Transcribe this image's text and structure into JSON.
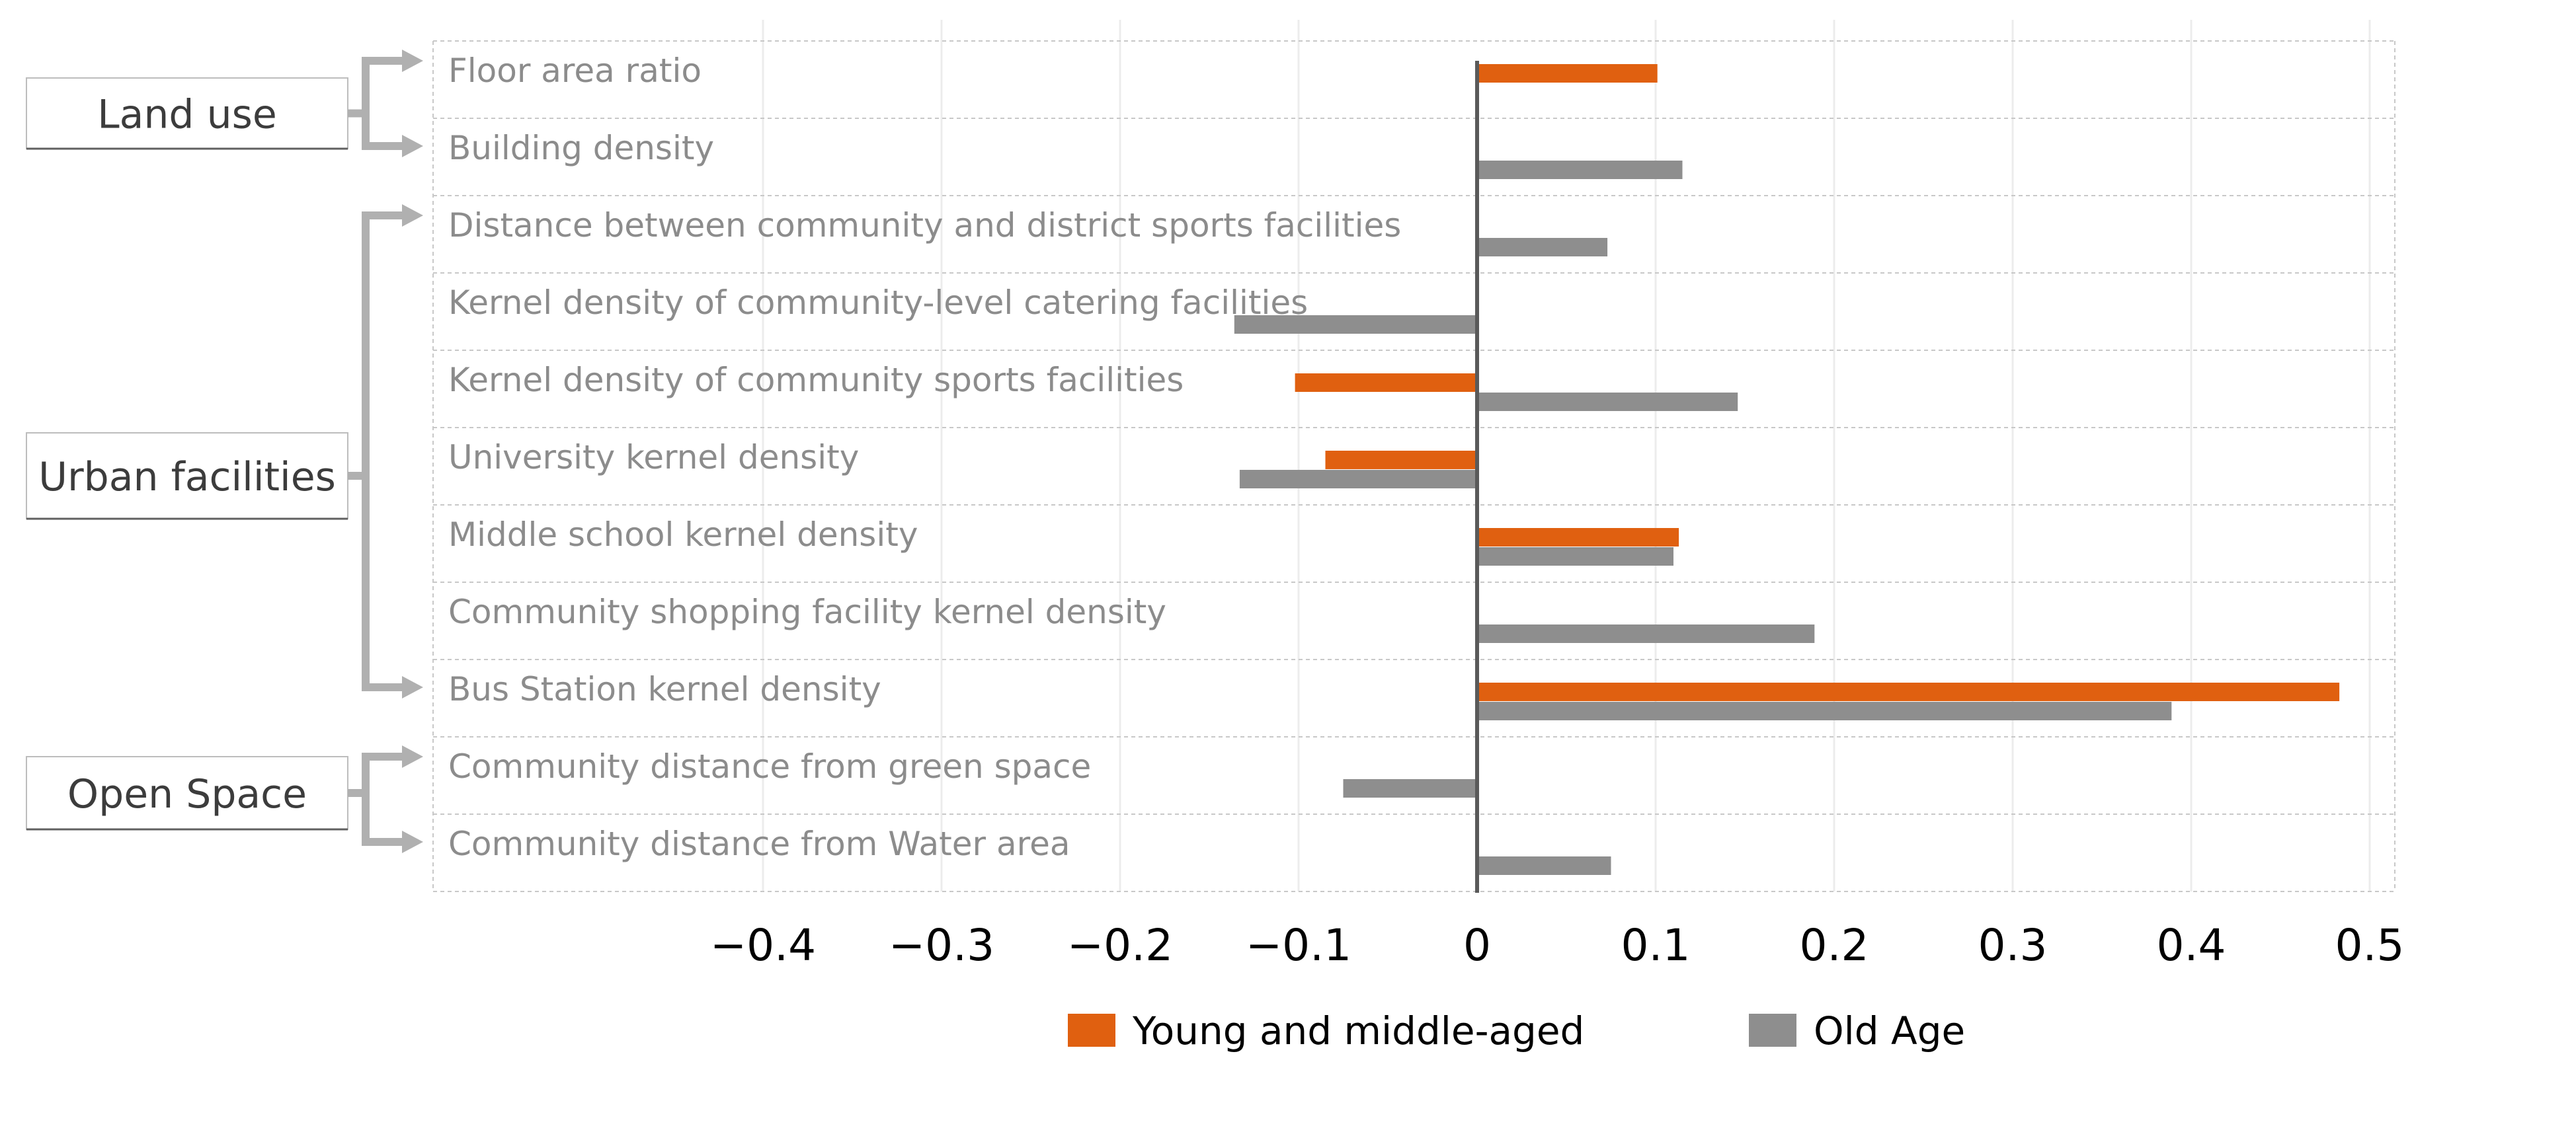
{
  "chart_data": {
    "type": "bar",
    "orientation": "horizontal",
    "categories": [
      "Floor area ratio",
      "Building density",
      "Distance between community and district sports facilities",
      "Kernel density of community-level catering facilities",
      "Kernel density of community sports facilities",
      "University kernel density",
      "Middle school kernel density",
      "Community shopping facility kernel density",
      "Bus Station kernel density",
      "Community distance from green space",
      "Community distance from Water area"
    ],
    "series": [
      {
        "name": "Young and middle-aged",
        "color": "#e06010",
        "values": [
          0.101,
          null,
          null,
          null,
          -0.102,
          -0.085,
          0.113,
          null,
          0.483,
          null,
          null
        ]
      },
      {
        "name": "Old Age",
        "color": "#8e8e8e",
        "values": [
          null,
          0.115,
          0.073,
          -0.136,
          0.146,
          -0.133,
          0.11,
          0.189,
          0.389,
          -0.075,
          0.075
        ]
      }
    ],
    "groups": [
      {
        "label": "Land use",
        "first": 0,
        "last": 1
      },
      {
        "label": "Urban facilities",
        "first": 2,
        "last": 8
      },
      {
        "label": "Open Space",
        "first": 9,
        "last": 10
      }
    ],
    "xticks": [
      "−0.4",
      "−0.3",
      "−0.2",
      "−0.1",
      "0",
      "0.1",
      "0.2",
      "0.3",
      "0.4",
      "0.5"
    ],
    "xlim": [
      -0.4,
      0.5
    ],
    "grid": true,
    "legend_position": "bottom"
  }
}
